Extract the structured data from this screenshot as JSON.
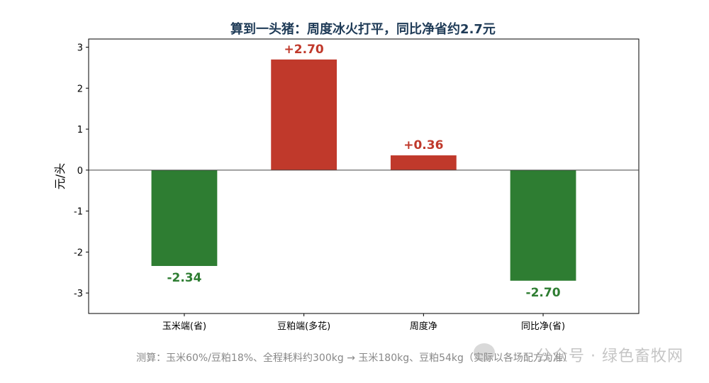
{
  "chart_data": {
    "type": "bar",
    "title": "算到一头猪：周度冰火打平，同比净省约2.7元",
    "ylabel": "元/头",
    "xlabel": "",
    "ylim": [
      -3.5,
      3.2
    ],
    "yticks": [
      -3,
      -2,
      -1,
      0,
      1,
      2,
      3
    ],
    "categories": [
      "玉米端(省)",
      "豆粕端(多花)",
      "周度净",
      "同比净(省)"
    ],
    "values": [
      -2.34,
      2.7,
      0.36,
      -2.7
    ],
    "value_labels": [
      "-2.34",
      "+2.70",
      "+0.36",
      "-2.70"
    ],
    "colors": {
      "positive": "#c0392b",
      "negative": "#2e7d32",
      "title": "#1f3b57"
    },
    "grid": false
  },
  "footnote": "测算：玉米60%/豆粕18%、全程耗料约300kg → 玉米180kg、豆粕54kg（实际以各场配方为准）",
  "watermark": "公众号 · 绿色畜牧网"
}
